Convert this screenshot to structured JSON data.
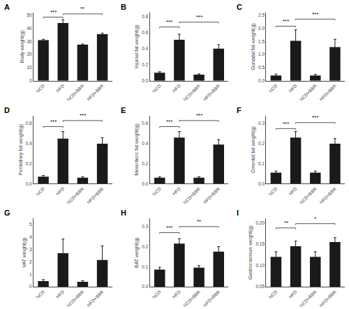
{
  "chart_data": [
    {
      "type": "bar",
      "title": "A",
      "ylabel": "Body weight(g)",
      "categories": [
        "NCD",
        "HFD",
        "NCD+BBR",
        "HFD+BBR"
      ],
      "values": [
        31,
        44,
        27.5,
        35.5
      ],
      "errors": [
        0.6,
        2.5,
        0.5,
        0.8
      ],
      "color": "#1a1a1a",
      "grid": false,
      "ylim": [
        0,
        52
      ],
      "yticks": [
        0,
        10,
        20,
        30,
        40,
        50
      ],
      "annotations": [
        {
          "text": "***",
          "x1": "NCD",
          "x2": "HFD",
          "y": 48.5
        },
        {
          "text": "**",
          "x1": "HFD",
          "x2": "HFD+BBR",
          "y": 51
        }
      ]
    },
    {
      "type": "bar",
      "title": "B",
      "ylabel": "Injuinal fat weight(g)",
      "categories": [
        "NCD",
        "HFD",
        "NCD+BBR",
        "HFD+BBR"
      ],
      "values": [
        0.1,
        0.51,
        0.075,
        0.4
      ],
      "errors": [
        0.012,
        0.07,
        0.01,
        0.05
      ],
      "color": "#1a1a1a",
      "grid": false,
      "ylim": [
        0,
        0.85
      ],
      "yticks": [
        {
          "value": 0,
          "label": "0.0"
        },
        0.2,
        0.4,
        0.6,
        0.8
      ],
      "annotations": [
        {
          "text": "***",
          "x1": "NCD",
          "x2": "HFD",
          "y": 0.67
        },
        {
          "text": "***",
          "x1": "HFD",
          "x2": "HFD+BBR",
          "y": 0.73
        }
      ]
    },
    {
      "type": "bar",
      "title": "C",
      "ylabel": "Gonadal fat weight(g)",
      "categories": [
        "NCD",
        "HFD",
        "NCD+BBR",
        "HFD+BBR"
      ],
      "values": [
        0.2,
        1.52,
        0.2,
        1.28
      ],
      "errors": [
        0.05,
        0.42,
        0.04,
        0.3
      ],
      "color": "#1a1a1a",
      "grid": false,
      "ylim": [
        0,
        2.6
      ],
      "yticks": [
        {
          "value": 0,
          "label": "0.0"
        },
        0.5,
        {
          "value": 1,
          "label": "1.0"
        },
        1.5,
        {
          "value": 2,
          "label": "2.0"
        },
        2.5
      ],
      "annotations": [
        {
          "text": "***",
          "x1": "NCD",
          "x2": "HFD",
          "y": 2.08
        },
        {
          "text": "***",
          "x1": "HFD",
          "x2": "HFD+BBR",
          "y": 2.35
        }
      ]
    },
    {
      "type": "bar",
      "title": "D",
      "ylabel": "Perikidney fat weight(g)",
      "categories": [
        "NCD",
        "HFD",
        "NCD+BBR",
        "HFD+BBR"
      ],
      "values": [
        0.07,
        0.45,
        0.06,
        0.4
      ],
      "errors": [
        0.012,
        0.07,
        0.01,
        0.06
      ],
      "color": "#1a1a1a",
      "grid": false,
      "ylim": [
        0,
        0.68
      ],
      "yticks": [
        {
          "value": 0,
          "label": "0.0"
        },
        0.2,
        0.4,
        0.6
      ],
      "annotations": [
        {
          "text": "***",
          "x1": "NCD",
          "x2": "HFD",
          "y": 0.57
        },
        {
          "text": "***",
          "x1": "HFD",
          "x2": "HFD+BBR",
          "y": 0.63
        }
      ]
    },
    {
      "type": "bar",
      "title": "E",
      "ylabel": "Mesenteric fat weight(g)",
      "categories": [
        "NCD",
        "HFD",
        "NCD+BBR",
        "HFD+BBR"
      ],
      "values": [
        0.06,
        0.46,
        0.06,
        0.39
      ],
      "errors": [
        0.01,
        0.06,
        0.01,
        0.05
      ],
      "color": "#1a1a1a",
      "grid": false,
      "ylim": [
        0,
        0.68
      ],
      "yticks": [
        {
          "value": 0,
          "label": "0.0"
        },
        0.2,
        0.4,
        0.6
      ],
      "annotations": [
        {
          "text": "***",
          "x1": "NCD",
          "x2": "HFD",
          "y": 0.57
        },
        {
          "text": "***",
          "x1": "HFD",
          "x2": "HFD+BBR",
          "y": 0.63
        }
      ]
    },
    {
      "type": "bar",
      "title": "F",
      "ylabel": "Omental fat weight(g)",
      "categories": [
        "NCD",
        "HFD",
        "NCD+BBR",
        "HFD+BBR"
      ],
      "values": [
        0.055,
        0.23,
        0.055,
        0.2
      ],
      "errors": [
        0.008,
        0.03,
        0.008,
        0.025
      ],
      "color": "#1a1a1a",
      "grid": false,
      "ylim": [
        0,
        0.34
      ],
      "yticks": [
        {
          "value": 0,
          "label": "0.0"
        },
        0.1,
        0.2,
        0.3
      ],
      "annotations": [
        {
          "text": "***",
          "x1": "NCD",
          "x2": "HFD",
          "y": 0.275
        },
        {
          "text": "***",
          "x1": "HFD",
          "x2": "HFD+BBR",
          "y": 0.305
        }
      ]
    },
    {
      "type": "bar",
      "title": "G",
      "ylabel": "VAT weight(g)",
      "categories": [
        "NCD",
        "HFD",
        "NCD+BBR",
        "HFD+BBR"
      ],
      "values": [
        0.45,
        2.7,
        0.4,
        2.15
      ],
      "errors": [
        0.12,
        1.15,
        0.08,
        1.15
      ],
      "color": "#1a1a1a",
      "grid": false,
      "ylim": [
        0,
        5.5
      ],
      "yticks": [
        0,
        1,
        2,
        3,
        4,
        5
      ],
      "annotations": []
    },
    {
      "type": "bar",
      "title": "H",
      "ylabel": "BAT weight(g)",
      "categories": [
        "NCD",
        "HFD",
        "NCD+BBR",
        "HFD+BBR"
      ],
      "values": [
        0.085,
        0.215,
        0.095,
        0.175
      ],
      "errors": [
        0.012,
        0.025,
        0.01,
        0.025
      ],
      "color": "#1a1a1a",
      "grid": false,
      "ylim": [
        0,
        0.34
      ],
      "yticks": [
        {
          "value": 0,
          "label": "0.0"
        },
        0.1,
        0.2,
        0.3
      ],
      "annotations": [
        {
          "text": "***",
          "x1": "NCD",
          "x2": "HFD",
          "y": 0.27
        },
        {
          "text": "**",
          "x1": "HFD",
          "x2": "HFD+BBR",
          "y": 0.3
        }
      ]
    },
    {
      "type": "bar",
      "title": "I",
      "ylabel": "Gastrocnemius weight(g)",
      "categories": [
        "NCD",
        "HFD",
        "NCD+BBR",
        "HFD+BBR"
      ],
      "values": [
        0.12,
        0.145,
        0.12,
        0.155
      ],
      "errors": [
        0.012,
        0.012,
        0.012,
        0.01
      ],
      "color": "#1a1a1a",
      "grid": false,
      "ylim": [
        0.05,
        0.21
      ],
      "yticks": [
        0.05,
        {
          "value": 0.1,
          "label": "0.10"
        },
        0.15,
        {
          "value": 0.2,
          "label": "0.20"
        }
      ],
      "annotations": [
        {
          "text": "**",
          "x1": "NCD",
          "x2": "HFD",
          "y": 0.188
        },
        {
          "text": "*",
          "x1": "HFD",
          "x2": "HFD+BBR",
          "y": 0.198
        }
      ]
    }
  ]
}
